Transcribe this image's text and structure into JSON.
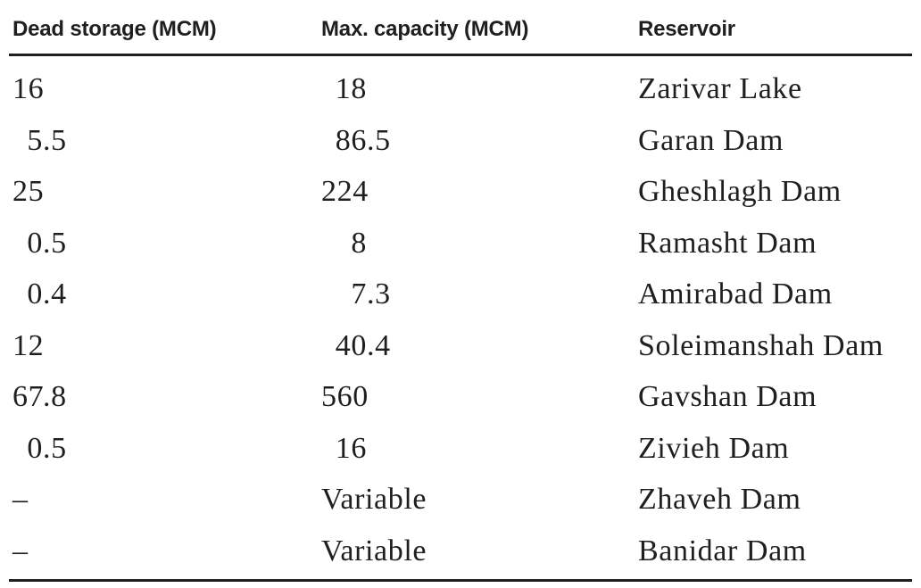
{
  "table": {
    "columns": [
      {
        "id": "dead_storage",
        "label": "Dead storage (MCM)"
      },
      {
        "id": "max_capacity",
        "label": "Max. capacity (MCM)"
      },
      {
        "id": "reservoir",
        "label": "Reservoir"
      }
    ],
    "rows": [
      {
        "dead_storage": "16",
        "max_capacity": "18",
        "reservoir": "Zarivar Lake"
      },
      {
        "dead_storage": "5.5",
        "max_capacity": "86.5",
        "reservoir": "Garan Dam"
      },
      {
        "dead_storage": "25",
        "max_capacity": "224",
        "reservoir": "Gheshlagh Dam"
      },
      {
        "dead_storage": "0.5",
        "max_capacity": "8",
        "reservoir": "Ramasht Dam"
      },
      {
        "dead_storage": "0.4",
        "max_capacity": "7.3",
        "reservoir": "Amirabad Dam"
      },
      {
        "dead_storage": "12",
        "max_capacity": "40.4",
        "reservoir": "Soleimanshah Dam"
      },
      {
        "dead_storage": "67.8",
        "max_capacity": "560",
        "reservoir": "Gavshan Dam"
      },
      {
        "dead_storage": "0.5",
        "max_capacity": "16",
        "reservoir": "Zivieh Dam"
      },
      {
        "dead_storage": "–",
        "max_capacity": "Variable",
        "reservoir": "Zhaveh Dam"
      },
      {
        "dead_storage": "–",
        "max_capacity": "Variable",
        "reservoir": "Banidar Dam"
      }
    ]
  },
  "colors": {
    "text": "#1f1f1f",
    "rule": "#1f1f1f",
    "background": "#ffffff"
  }
}
